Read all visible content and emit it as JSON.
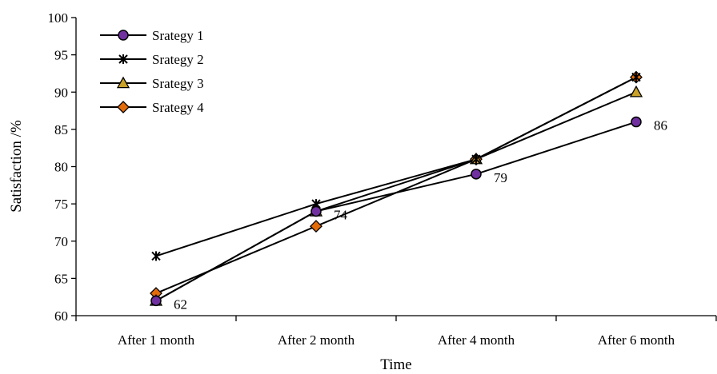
{
  "chart_data": {
    "type": "line",
    "title": "",
    "xlabel": "Time",
    "ylabel": "Satisfaction /%",
    "categories": [
      "After 1 month",
      "After 2 month",
      "After 4 month",
      "After 6 month"
    ],
    "ylim": [
      60,
      100
    ],
    "yticks": [
      60,
      65,
      70,
      75,
      80,
      85,
      90,
      95,
      100
    ],
    "grid": false,
    "legend_position": "top-left",
    "series": [
      {
        "name": "Srategy 1",
        "values": [
          62,
          74,
          79,
          86
        ],
        "marker": "circle",
        "color": "#7030a0"
      },
      {
        "name": "Srategy 2",
        "values": [
          68,
          75,
          81,
          92
        ],
        "marker": "star",
        "color": "#000000"
      },
      {
        "name": "Srategy 3",
        "values": [
          62,
          74,
          81,
          90
        ],
        "marker": "triangle",
        "color": "#c9a227"
      },
      {
        "name": "Srategy 4",
        "values": [
          63,
          72,
          81,
          92
        ],
        "marker": "diamond",
        "color": "#e36c0a"
      }
    ],
    "annotations": [
      {
        "series": 0,
        "index": 0,
        "text": "62"
      },
      {
        "series": 0,
        "index": 1,
        "text": "74"
      },
      {
        "series": 0,
        "index": 2,
        "text": "79"
      },
      {
        "series": 0,
        "index": 3,
        "text": "86"
      }
    ]
  }
}
